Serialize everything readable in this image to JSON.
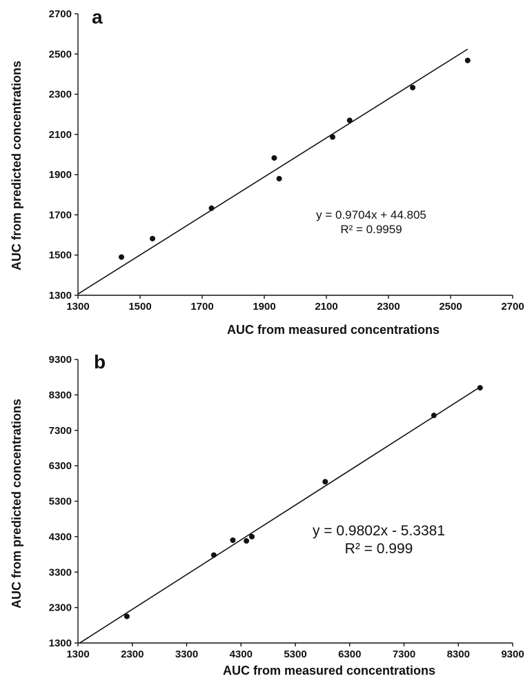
{
  "chart_data": [
    {
      "type": "scatter",
      "panel_label": "a",
      "xlabel": "AUC from measured concentrations",
      "ylabel": "AUC from predicted concentrations",
      "xlim": [
        1300,
        2700
      ],
      "ylim": [
        1300,
        2700
      ],
      "x_ticks": [
        "1300",
        "1500",
        "1700",
        "1900",
        "2100",
        "2300",
        "2500",
        "2700"
      ],
      "y_ticks": [
        "1300",
        "1500",
        "1700",
        "1900",
        "2100",
        "2300",
        "2500",
        "2700"
      ],
      "points": [
        {
          "x": 1440,
          "y": 1490
        },
        {
          "x": 1540,
          "y": 1582
        },
        {
          "x": 1730,
          "y": 1733
        },
        {
          "x": 1932,
          "y": 1983
        },
        {
          "x": 1948,
          "y": 1880
        },
        {
          "x": 2120,
          "y": 2087
        },
        {
          "x": 2175,
          "y": 2170
        },
        {
          "x": 2378,
          "y": 2333
        },
        {
          "x": 2555,
          "y": 2468
        }
      ],
      "trendline": {
        "slope": 0.9704,
        "intercept": 44.805,
        "x_range": [
          1300,
          2555
        ]
      },
      "equation": "y = 0.9704x + 44.805",
      "r_squared": "R² = 0.9959",
      "grid": false,
      "legend": "none"
    },
    {
      "type": "scatter",
      "panel_label": "b",
      "xlabel": "AUC from measured concentrations",
      "ylabel": "AUC from predicted concentrations",
      "xlim": [
        1300,
        9300
      ],
      "ylim": [
        1300,
        9300
      ],
      "x_ticks": [
        "1300",
        "2300",
        "3300",
        "4300",
        "5300",
        "6300",
        "7300",
        "8300",
        "9300"
      ],
      "y_ticks": [
        "1300",
        "2300",
        "3300",
        "4300",
        "5300",
        "6300",
        "7300",
        "8300",
        "9300"
      ],
      "points": [
        {
          "x": 2200,
          "y": 2050
        },
        {
          "x": 3800,
          "y": 3780
        },
        {
          "x": 4150,
          "y": 4200
        },
        {
          "x": 4400,
          "y": 4180
        },
        {
          "x": 4500,
          "y": 4300
        },
        {
          "x": 5850,
          "y": 5850
        },
        {
          "x": 7850,
          "y": 7720
        },
        {
          "x": 8700,
          "y": 8500
        }
      ],
      "trendline": {
        "slope": 0.9802,
        "intercept": -5.3381,
        "x_range": [
          1330,
          8700
        ]
      },
      "equation": "y = 0.9802x - 5.3381",
      "r_squared": "R² = 0.999",
      "grid": false,
      "legend": "none"
    }
  ]
}
